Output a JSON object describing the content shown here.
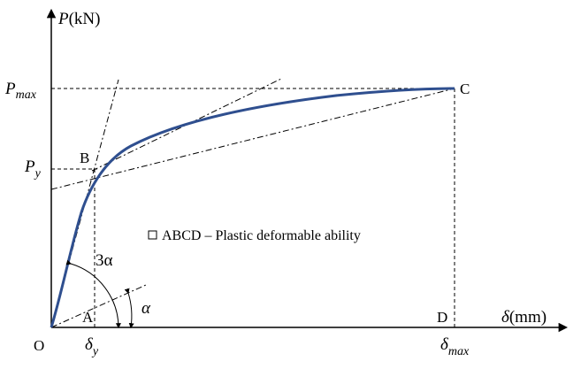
{
  "diagram": {
    "y_axis": {
      "symbol": "P",
      "unit": "(kN)"
    },
    "x_axis": {
      "symbol": "δ",
      "unit": "(mm)"
    },
    "origin_label": "O",
    "y_ticks": {
      "pmax": {
        "main": "P",
        "sub": "max"
      },
      "py": {
        "main": "P",
        "sub": "y"
      }
    },
    "x_ticks": {
      "dy": {
        "main": "δ",
        "sub": "y"
      },
      "dmax": {
        "main": "δ",
        "sub": "max"
      }
    },
    "points": {
      "A": "A",
      "B": "B",
      "C": "C",
      "D": "D"
    },
    "angles": {
      "small": "α",
      "large": "3α"
    },
    "legend_text": "ABCD – Plastic deformable ability",
    "colors": {
      "curve": "#2f4f8f",
      "lines": "#000000"
    }
  }
}
